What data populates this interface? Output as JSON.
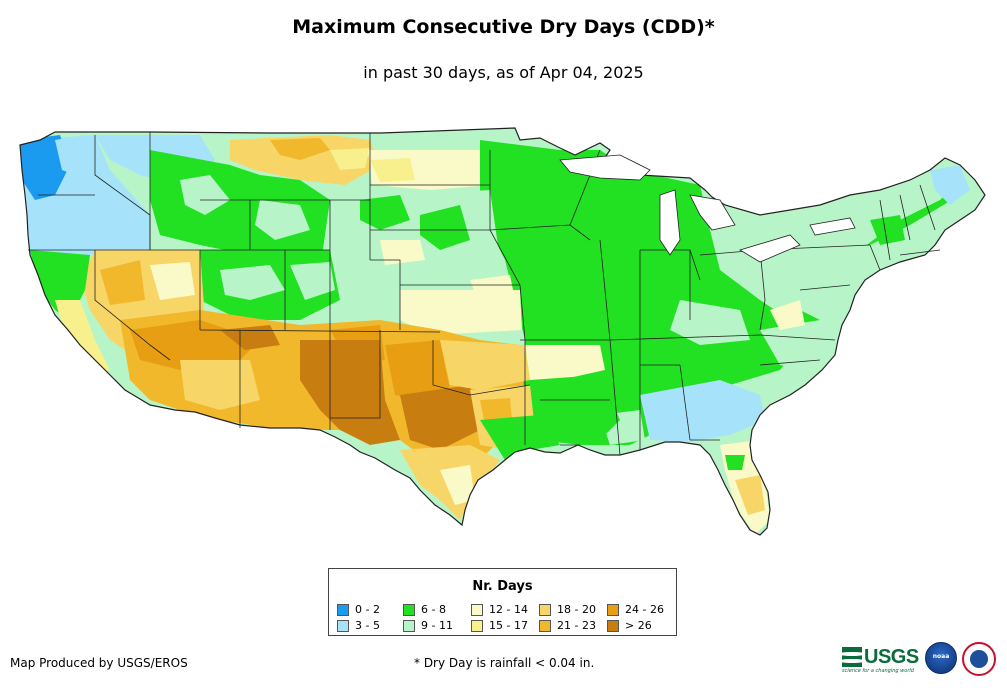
{
  "title": "Maximum Consecutive Dry Days (CDD)*",
  "subtitle": "in past 30 days, as of Apr 04, 2025",
  "legend": {
    "title": "Nr. Days",
    "items": [
      {
        "label": "0 - 2",
        "color": "#1a9bf0"
      },
      {
        "label": "3 - 5",
        "color": "#a6e3fb"
      },
      {
        "label": "6 - 8",
        "color": "#22e022"
      },
      {
        "label": "9 - 11",
        "color": "#b7f5c8"
      },
      {
        "label": "12 - 14",
        "color": "#fafac8"
      },
      {
        "label": "15 - 17",
        "color": "#f7f08c"
      },
      {
        "label": "18 - 20",
        "color": "#f8d567"
      },
      {
        "label": "21 - 23",
        "color": "#f2b82b"
      },
      {
        "label": "24 - 26",
        "color": "#e89e12"
      },
      {
        "label": "> 26",
        "color": "#c87d10"
      }
    ]
  },
  "footer": {
    "credit": "Map Produced by USGS/EROS",
    "note": "* Dry Day is rainfall < 0.04 in."
  },
  "logos": {
    "usgs": "USGS",
    "usgs_tagline": "science for a changing world",
    "noaa": "noaa"
  },
  "map_colors": {
    "border": "#222222",
    "ocean": "#ffffff"
  }
}
